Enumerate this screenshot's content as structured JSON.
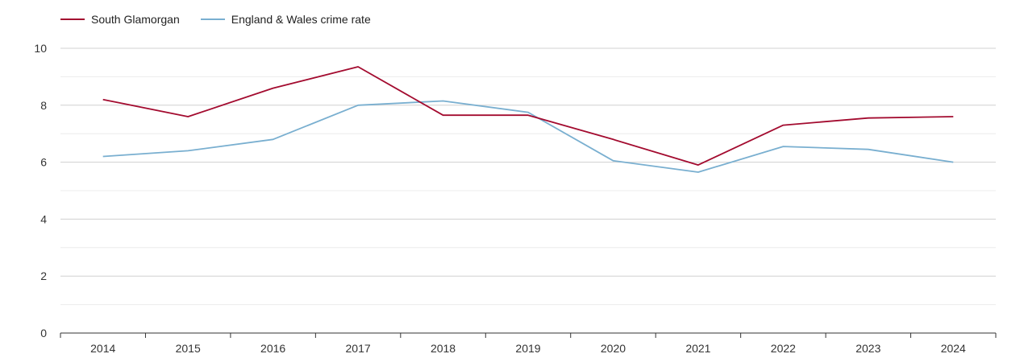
{
  "chart_data": {
    "type": "line",
    "categories": [
      "2014",
      "2015",
      "2016",
      "2017",
      "2018",
      "2019",
      "2020",
      "2021",
      "2022",
      "2023",
      "2024"
    ],
    "series": [
      {
        "name": "South Glamorgan",
        "color": "#a30b2f",
        "values": [
          8.2,
          7.6,
          8.6,
          9.35,
          7.65,
          7.65,
          6.8,
          5.9,
          7.3,
          7.55,
          7.6
        ]
      },
      {
        "name": "England & Wales crime rate",
        "color": "#79afd0",
        "values": [
          6.2,
          6.4,
          6.8,
          8.0,
          8.15,
          7.75,
          6.05,
          5.65,
          6.55,
          6.45,
          6.0
        ]
      }
    ],
    "yticks": [
      0,
      2,
      4,
      6,
      8,
      10
    ],
    "ylim": [
      0,
      10
    ],
    "grid": true,
    "legend_position": "top-left"
  }
}
